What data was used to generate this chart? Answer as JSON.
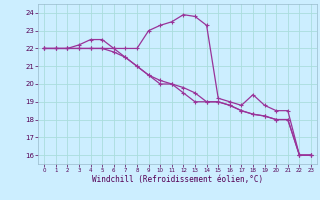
{
  "xlabel": "Windchill (Refroidissement éolien,°C)",
  "bg_color": "#cceeff",
  "grid_color": "#aadddd",
  "line_color": "#993399",
  "hours": [
    0,
    1,
    2,
    3,
    4,
    5,
    6,
    7,
    8,
    9,
    10,
    11,
    12,
    13,
    14,
    15,
    16,
    17,
    18,
    19,
    20,
    21,
    22,
    23
  ],
  "line1": [
    22,
    22,
    22,
    22,
    22,
    22,
    22,
    21.5,
    21,
    20.5,
    20,
    20,
    19.5,
    19,
    19,
    19,
    18.8,
    18.5,
    18.3,
    18.2,
    18,
    18,
    16,
    16
  ],
  "line2": [
    22,
    22,
    22,
    22.2,
    22.5,
    22.5,
    22,
    22,
    22,
    23,
    23.3,
    23.5,
    23.9,
    23.8,
    23.3,
    19.2,
    19,
    18.8,
    19.4,
    18.8,
    18.5,
    18.5,
    16,
    16
  ],
  "line3": [
    22,
    22,
    22,
    22,
    22,
    22,
    21.8,
    21.5,
    21,
    20.5,
    20.2,
    20,
    19.8,
    19.5,
    19,
    19,
    18.8,
    18.5,
    18.3,
    18.2,
    18,
    18,
    16,
    16
  ],
  "ylim": [
    15.5,
    24.5
  ],
  "xlim": [
    -0.5,
    23.5
  ],
  "yticks": [
    16,
    17,
    18,
    19,
    20,
    21,
    22,
    23,
    24
  ]
}
